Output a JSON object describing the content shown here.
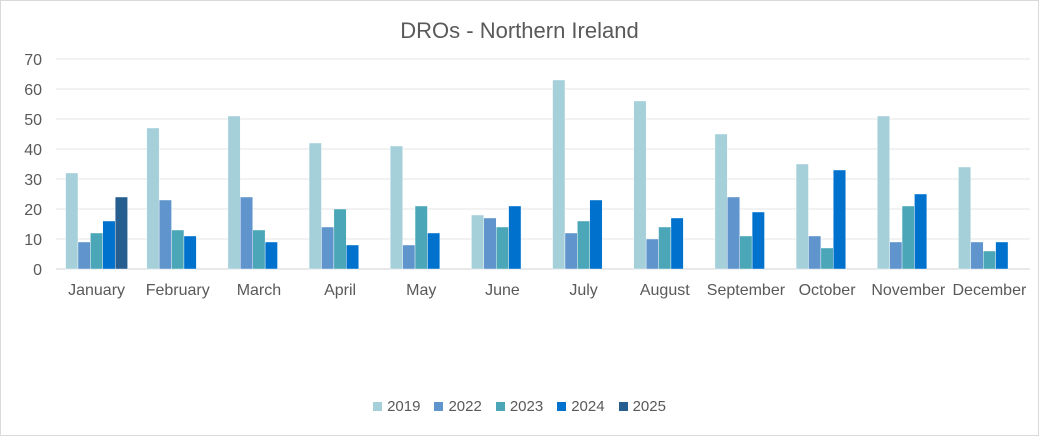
{
  "chart_data": {
    "type": "bar",
    "title": "DROs - Northern Ireland",
    "xlabel": "",
    "ylabel": "",
    "ylim": [
      0,
      70
    ],
    "yticks": [
      0,
      10,
      20,
      30,
      40,
      50,
      60,
      70
    ],
    "grid": true,
    "legend": "bottom",
    "categories": [
      "January",
      "February",
      "March",
      "April",
      "May",
      "June",
      "July",
      "August",
      "September",
      "October",
      "November",
      "December"
    ],
    "series": [
      {
        "name": "2019",
        "color": "#A5D0DA",
        "values": [
          32,
          47,
          51,
          42,
          41,
          18,
          63,
          56,
          45,
          35,
          51,
          34
        ]
      },
      {
        "name": "2022",
        "color": "#5F94CC",
        "values": [
          9,
          23,
          24,
          14,
          8,
          17,
          12,
          10,
          24,
          11,
          9,
          9
        ]
      },
      {
        "name": "2023",
        "color": "#4BA7B8",
        "values": [
          12,
          13,
          13,
          20,
          21,
          14,
          16,
          14,
          11,
          7,
          21,
          6
        ]
      },
      {
        "name": "2024",
        "color": "#0072CE",
        "values": [
          16,
          11,
          9,
          8,
          12,
          21,
          23,
          17,
          19,
          33,
          25,
          9
        ]
      },
      {
        "name": "2025",
        "color": "#265F8F",
        "values": [
          24,
          null,
          null,
          null,
          null,
          null,
          null,
          null,
          null,
          null,
          null,
          null
        ]
      }
    ]
  }
}
